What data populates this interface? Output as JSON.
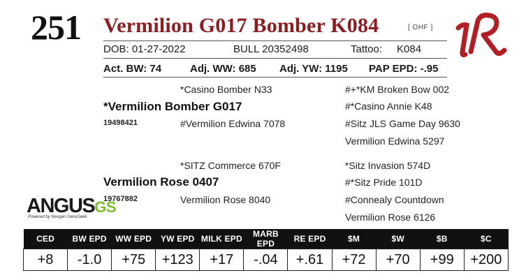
{
  "lot_number": "251",
  "animal_name": "Vermilion G017 Bomber K084",
  "tag": "[ OHF ]",
  "info": {
    "dob": "DOB:   01-27-2022",
    "bull": "BULL   20352498",
    "tattoo_label": "Tattoo:",
    "tattoo_value": "K084"
  },
  "stats": {
    "act_bw": "Act. BW: 74",
    "adj_ww": "Adj. WW: 685",
    "adj_yw": "Adj. YW: 1195",
    "pap_epd": "PAP EPD: -.95"
  },
  "pedigree": {
    "sire_sire": "*Casino Bomber N33",
    "sire": "*Vermilion Bomber G017",
    "sire_reg": "19498421",
    "sire_dam": "#Vermilion Edwina 7078",
    "ss_sire": "#+*KM Broken Bow 002",
    "ss_dam": "#*Casino Annie K48",
    "sd_sire": "#Sitz JLS Game Day 9630",
    "sd_dam": "Vermilion Edwina 5297",
    "dam_sire": "*SITZ Commerce 670F",
    "dam": "Vermilion Rose 0407",
    "dam_reg": "19767882",
    "dam_dam": "Vermilion Rose 8040",
    "ds_sire": "*Sitz Invasion 574D",
    "ds_dam": "#*Sitz Pride 101D",
    "dd_sire": "#Connealy Countdown",
    "dd_dam": "Vermilion Rose 6126"
  },
  "branding": {
    "angus": "ANGUS",
    "gs": "GS",
    "powered": "Powered by Neogen GeneSeek"
  },
  "epd": {
    "headers": [
      "CED",
      "BW EPD",
      "WW EPD",
      "YW EPD",
      "MILK EPD",
      "MARB EPD",
      "RE EPD",
      "$M",
      "$W",
      "$B",
      "$C"
    ],
    "values": [
      "+8",
      "-1.0",
      "+75",
      "+123",
      "+17",
      "-.04",
      "+.61",
      "+72",
      "+70",
      "+99",
      "+200"
    ]
  },
  "colors": {
    "name": "#8b1c1f",
    "logo": "#b11e24",
    "gs": "#7dbb2f",
    "header_bg": "#111111"
  }
}
